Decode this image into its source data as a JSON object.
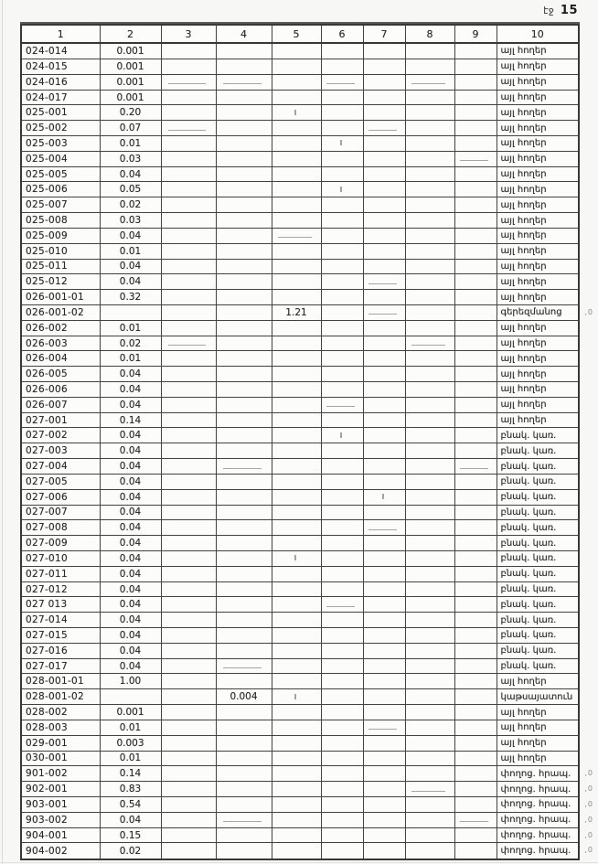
{
  "page": {
    "label": "էջ",
    "number": "15"
  },
  "table": {
    "headers": [
      "1",
      "2",
      "3",
      "4",
      "5",
      "6",
      "7",
      "8",
      "9",
      "10"
    ],
    "rows": [
      {
        "cells": [
          "024-014",
          "0.001",
          "",
          "",
          "",
          "",
          "",
          "",
          "",
          "այլ հողեր"
        ]
      },
      {
        "cells": [
          "024-015",
          "0.001",
          "",
          "",
          "",
          "",
          "",
          "",
          "",
          "այլ հողեր"
        ]
      },
      {
        "cells": [
          "024-016",
          "0.001",
          "",
          "",
          "",
          "",
          "",
          "",
          "",
          "այլ հողեր"
        ]
      },
      {
        "cells": [
          "024-017",
          "0.001",
          "",
          "",
          "",
          "",
          "",
          "",
          "",
          "այլ հողեր"
        ]
      },
      {
        "cells": [
          "025-001",
          "0.20",
          "",
          "",
          "",
          "",
          "",
          "",
          "",
          "այլ հողեր"
        ]
      },
      {
        "cells": [
          "025-002",
          "0.07",
          "",
          "",
          "",
          "",
          "",
          "",
          "",
          "այլ հողեր"
        ]
      },
      {
        "cells": [
          "025-003",
          "0.01",
          "",
          "",
          "",
          "",
          "",
          "",
          "",
          "այլ հողեր"
        ]
      },
      {
        "cells": [
          "025-004",
          "0.03",
          "",
          "",
          "",
          "",
          "",
          "",
          "",
          "այլ հողեր"
        ]
      },
      {
        "cells": [
          "025-005",
          "0.04",
          "",
          "",
          "",
          "",
          "",
          "",
          "",
          "այլ հողեր"
        ]
      },
      {
        "cells": [
          "025-006",
          "0.05",
          "",
          "",
          "",
          "",
          "",
          "",
          "",
          "այլ հողեր"
        ]
      },
      {
        "cells": [
          "025-007",
          "0.02",
          "",
          "",
          "",
          "",
          "",
          "",
          "",
          "այլ հողեր"
        ]
      },
      {
        "cells": [
          "025-008",
          "0.03",
          "",
          "",
          "",
          "",
          "",
          "",
          "",
          "այլ հողեր"
        ]
      },
      {
        "cells": [
          "025-009",
          "0.04",
          "",
          "",
          "",
          "",
          "",
          "",
          "",
          "այլ հողեր"
        ]
      },
      {
        "cells": [
          "025-010",
          "0.01",
          "",
          "",
          "",
          "",
          "",
          "",
          "",
          "այլ հողեր"
        ]
      },
      {
        "cells": [
          "025-011",
          "0.04",
          "",
          "",
          "",
          "",
          "",
          "",
          "",
          "այլ հողեր"
        ]
      },
      {
        "cells": [
          "025-012",
          "0.04",
          "",
          "",
          "",
          "",
          "",
          "",
          "",
          "այլ հողեր"
        ]
      },
      {
        "cells": [
          "026-001-01",
          "0.32",
          "",
          "",
          "",
          "",
          "",
          "",
          "",
          "այլ հողեր"
        ]
      },
      {
        "cells": [
          "026-001-02",
          "",
          "",
          "",
          "1.21",
          "",
          "",
          "",
          "",
          "գերեզմանոց"
        ],
        "mark": ",0"
      },
      {
        "cells": [
          "026-002",
          "0.01",
          "",
          "",
          "",
          "",
          "",
          "",
          "",
          "այլ հողեր"
        ]
      },
      {
        "cells": [
          "026-003",
          "0.02",
          "",
          "",
          "",
          "",
          "",
          "",
          "",
          "այլ հողեր"
        ]
      },
      {
        "cells": [
          "026-004",
          "0.01",
          "",
          "",
          "",
          "",
          "",
          "",
          "",
          "այլ հողեր"
        ]
      },
      {
        "cells": [
          "026-005",
          "0.04",
          "",
          "",
          "",
          "",
          "",
          "",
          "",
          "այլ հողեր"
        ]
      },
      {
        "cells": [
          "026-006",
          "0.04",
          "",
          "",
          "",
          "",
          "",
          "",
          "",
          "այլ հողեր"
        ]
      },
      {
        "cells": [
          "026-007",
          "0.04",
          "",
          "",
          "",
          "",
          "",
          "",
          "",
          "այլ հողեր"
        ]
      },
      {
        "cells": [
          "027-001",
          "0.14",
          "",
          "",
          "",
          "",
          "",
          "",
          "",
          "այլ հողեր"
        ]
      },
      {
        "cells": [
          "027-002",
          "0.04",
          "",
          "",
          "",
          "",
          "",
          "",
          "",
          "բնակ. կառ."
        ]
      },
      {
        "cells": [
          "027-003",
          "0.04",
          "",
          "",
          "",
          "",
          "",
          "",
          "",
          "բնակ. կառ."
        ]
      },
      {
        "cells": [
          "027-004",
          "0.04",
          "",
          "",
          "",
          "",
          "",
          "",
          "",
          "բնակ. կառ."
        ]
      },
      {
        "cells": [
          "027-005",
          "0.04",
          "",
          "",
          "",
          "",
          "",
          "",
          "",
          "բնակ. կառ."
        ]
      },
      {
        "cells": [
          "027-006",
          "0.04",
          "",
          "",
          "",
          "",
          "",
          "",
          "",
          "բնակ. կառ."
        ]
      },
      {
        "cells": [
          "027-007",
          "0.04",
          "",
          "",
          "",
          "",
          "",
          "",
          "",
          "բնակ. կառ."
        ]
      },
      {
        "cells": [
          "027-008",
          "0.04",
          "",
          "",
          "",
          "",
          "",
          "",
          "",
          "բնակ. կառ."
        ]
      },
      {
        "cells": [
          "027-009",
          "0.04",
          "",
          "",
          "",
          "",
          "",
          "",
          "",
          "բնակ. կառ."
        ]
      },
      {
        "cells": [
          "027-010",
          "0.04",
          "",
          "",
          "",
          "",
          "",
          "",
          "",
          "բնակ. կառ."
        ]
      },
      {
        "cells": [
          "027-011",
          "0.04",
          "",
          "",
          "",
          "",
          "",
          "",
          "",
          "բնակ. կառ."
        ]
      },
      {
        "cells": [
          "027-012",
          "0.04",
          "",
          "",
          "",
          "",
          "",
          "",
          "",
          "բնակ. կառ."
        ]
      },
      {
        "cells": [
          "027 013",
          "0.04",
          "",
          "",
          "",
          "",
          "",
          "",
          "",
          "բնակ. կառ."
        ]
      },
      {
        "cells": [
          "027-014",
          "0.04",
          "",
          "",
          "",
          "",
          "",
          "",
          "",
          "բնակ. կառ."
        ]
      },
      {
        "cells": [
          "027-015",
          "0.04",
          "",
          "",
          "",
          "",
          "",
          "",
          "",
          "բնակ. կառ."
        ]
      },
      {
        "cells": [
          "027-016",
          "0.04",
          "",
          "",
          "",
          "",
          "",
          "",
          "",
          "բնակ. կառ."
        ]
      },
      {
        "cells": [
          "027-017",
          "0.04",
          "",
          "",
          "",
          "",
          "",
          "",
          "",
          "բնակ. կառ."
        ]
      },
      {
        "cells": [
          "028-001-01",
          "1.00",
          "",
          "",
          "",
          "",
          "",
          "",
          "",
          "այլ հողեր"
        ]
      },
      {
        "cells": [
          "028-001-02",
          "",
          "",
          "0.004",
          "",
          "",
          "",
          "",
          "",
          "կաթսայատուն"
        ]
      },
      {
        "cells": [
          "028-002",
          "0.001",
          "",
          "",
          "",
          "",
          "",
          "",
          "",
          "այլ հողեր"
        ]
      },
      {
        "cells": [
          "028-003",
          "0.01",
          "",
          "",
          "",
          "",
          "",
          "",
          "",
          "այլ հողեր"
        ]
      },
      {
        "cells": [
          "029-001",
          "0.003",
          "",
          "",
          "",
          "",
          "",
          "",
          "",
          "այլ հողեր"
        ]
      },
      {
        "cells": [
          "030-001",
          "0.01",
          "",
          "",
          "",
          "",
          "",
          "",
          "",
          "այլ հողեր"
        ]
      },
      {
        "cells": [
          "901-002",
          "0.14",
          "",
          "",
          "",
          "",
          "",
          "",
          "",
          "փողոց. հրապ."
        ],
        "mark": ",0"
      },
      {
        "cells": [
          "902-001",
          "0.83",
          "",
          "",
          "",
          "",
          "",
          "",
          "",
          "փողոց. հրապ."
        ],
        "mark": ",0"
      },
      {
        "cells": [
          "903-001",
          "0.54",
          "",
          "",
          "",
          "",
          "",
          "",
          "",
          "փողոց. հրապ."
        ],
        "mark": ",0"
      },
      {
        "cells": [
          "903-002",
          "0.04",
          "",
          "",
          "",
          "",
          "",
          "",
          "",
          "փողոց. հրապ."
        ],
        "mark": ",0"
      },
      {
        "cells": [
          "904-001",
          "0.15",
          "",
          "",
          "",
          "",
          "",
          "",
          "",
          "փողոց. հրապ."
        ],
        "mark": ",0"
      },
      {
        "cells": [
          "904-002",
          "0.02",
          "",
          "",
          "",
          "",
          "",
          "",
          "",
          "փողոց. հրապ."
        ],
        "mark": ",0"
      }
    ]
  }
}
